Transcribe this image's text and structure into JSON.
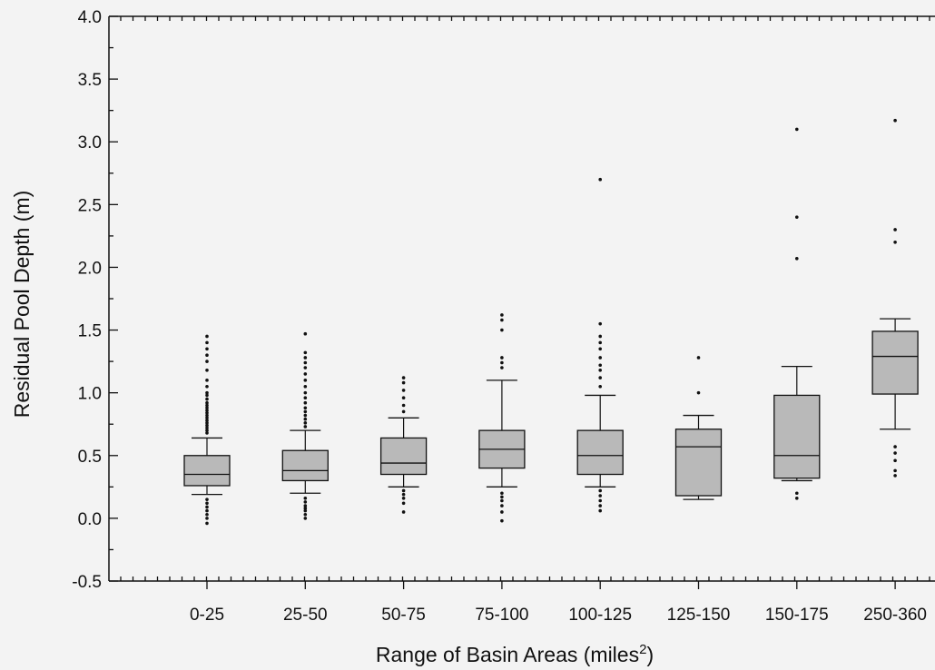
{
  "chart_data": {
    "type": "box",
    "title": "",
    "xlabel": "Range of Basin Areas (miles",
    "xlabel_sup": "2",
    "xlabel_end": ")",
    "ylabel": "Residual Pool Depth (m)",
    "ylim": [
      -0.5,
      4.0
    ],
    "yticks": [
      "-0.5",
      "0.0",
      "0.5",
      "1.0",
      "1.5",
      "2.0",
      "2.5",
      "3.0",
      "3.5",
      "4.0"
    ],
    "ytick_values": [
      -0.5,
      0.0,
      0.5,
      1.0,
      1.5,
      2.0,
      2.5,
      3.0,
      3.5,
      4.0
    ],
    "grid": false,
    "categories": [
      "0-25",
      "25-50",
      "50-75",
      "75-100",
      "100-125",
      "125-150",
      "150-175",
      "250-360"
    ],
    "boxes": [
      {
        "category": "0-25",
        "whisker_low": 0.19,
        "q1": 0.26,
        "median": 0.35,
        "q3": 0.5,
        "whisker_high": 0.64,
        "outliers": [
          1.45,
          1.4,
          1.35,
          1.3,
          1.25,
          1.18,
          1.1,
          1.05,
          1.0,
          0.98,
          0.95,
          0.92,
          0.9,
          0.88,
          0.86,
          0.84,
          0.82,
          0.8,
          0.78,
          0.76,
          0.74,
          0.72,
          0.7,
          0.68,
          0.15,
          0.12,
          0.09,
          0.06,
          0.03,
          0.0,
          -0.04
        ]
      },
      {
        "category": "25-50",
        "whisker_low": 0.2,
        "q1": 0.3,
        "median": 0.38,
        "q3": 0.54,
        "whisker_high": 0.7,
        "outliers": [
          1.47,
          1.32,
          1.28,
          1.24,
          1.2,
          1.15,
          1.1,
          1.05,
          1.0,
          0.96,
          0.92,
          0.88,
          0.85,
          0.82,
          0.79,
          0.76,
          0.73,
          0.16,
          0.13,
          0.1,
          0.08,
          0.06,
          0.03,
          0.0
        ]
      },
      {
        "category": "50-75",
        "whisker_low": 0.25,
        "q1": 0.35,
        "median": 0.44,
        "q3": 0.64,
        "whisker_high": 0.8,
        "outliers": [
          1.12,
          1.08,
          1.02,
          0.96,
          0.9,
          0.85,
          0.22,
          0.19,
          0.16,
          0.12,
          0.05
        ]
      },
      {
        "category": "75-100",
        "whisker_low": 0.25,
        "q1": 0.4,
        "median": 0.55,
        "q3": 0.7,
        "whisker_high": 1.1,
        "outliers": [
          1.62,
          1.58,
          1.5,
          1.28,
          1.24,
          1.2,
          0.2,
          0.17,
          0.14,
          0.1,
          0.05,
          -0.02
        ]
      },
      {
        "category": "100-125",
        "whisker_low": 0.25,
        "q1": 0.35,
        "median": 0.5,
        "q3": 0.7,
        "whisker_high": 0.98,
        "outliers": [
          2.7,
          1.55,
          1.45,
          1.4,
          1.35,
          1.28,
          1.22,
          1.18,
          1.12,
          1.05,
          0.22,
          0.18,
          0.14,
          0.1,
          0.06
        ]
      },
      {
        "category": "125-150",
        "whisker_low": 0.15,
        "q1": 0.18,
        "median": 0.57,
        "q3": 0.71,
        "whisker_high": 0.82,
        "outliers": [
          1.28,
          1.0
        ]
      },
      {
        "category": "150-175",
        "whisker_low": 0.3,
        "q1": 0.32,
        "median": 0.5,
        "q3": 0.98,
        "whisker_high": 1.21,
        "outliers": [
          3.1,
          2.4,
          2.07,
          0.2,
          0.16
        ]
      },
      {
        "category": "250-360",
        "whisker_low": 0.71,
        "q1": 0.99,
        "median": 1.29,
        "q3": 1.49,
        "whisker_high": 1.59,
        "outliers": [
          3.17,
          2.3,
          2.2,
          0.57,
          0.52,
          0.46,
          0.38,
          0.34
        ]
      }
    ]
  }
}
